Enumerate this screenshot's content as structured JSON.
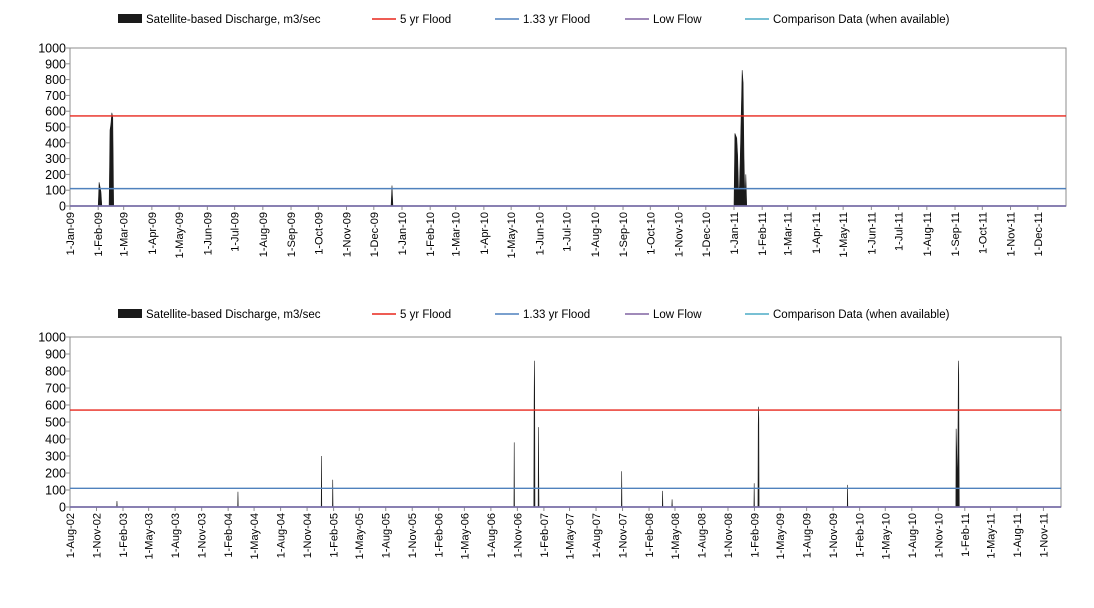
{
  "chart_data": [
    {
      "type": "area",
      "legend": [
        {
          "name": "Satellite-based Discharge, m3/sec",
          "color": "#1a1a1a",
          "style": "area"
        },
        {
          "name": "5 yr Flood",
          "color": "#e8261c",
          "style": "line"
        },
        {
          "name": "1.33 yr Flood",
          "color": "#4f81bd",
          "style": "line"
        },
        {
          "name": "Low Flow",
          "color": "#8064a2",
          "style": "line"
        },
        {
          "name": "Comparison Data (when available)",
          "color": "#4bacc6",
          "style": "line"
        }
      ],
      "ylim": [
        0,
        1000
      ],
      "yticks": [
        0,
        100,
        200,
        300,
        400,
        500,
        600,
        700,
        800,
        900,
        1000
      ],
      "xlim": [
        "2009-01-01",
        "2012-01-01"
      ],
      "xticks": [
        "1-Jan-09",
        "1-Feb-09",
        "1-Mar-09",
        "1-Apr-09",
        "1-May-09",
        "1-Jun-09",
        "1-Jul-09",
        "1-Aug-09",
        "1-Sep-09",
        "1-Oct-09",
        "1-Nov-09",
        "1-Dec-09",
        "1-Jan-10",
        "1-Feb-10",
        "1-Mar-10",
        "1-Apr-10",
        "1-May-10",
        "1-Jun-10",
        "1-Jul-10",
        "1-Aug-10",
        "1-Sep-10",
        "1-Oct-10",
        "1-Nov-10",
        "1-Dec-10",
        "1-Jan-11",
        "1-Feb-11",
        "1-Mar-11",
        "1-Apr-11",
        "1-May-11",
        "1-Jun-11",
        "1-Jul-11",
        "1-Aug-11",
        "1-Sep-11",
        "1-Oct-11",
        "1-Nov-11",
        "1-Dec-11"
      ],
      "reference_lines": {
        "5 yr Flood": 570,
        "1.33 yr Flood": 110,
        "Low Flow": 0,
        "Comparison Data (when available)": 0
      },
      "series": [
        {
          "name": "Satellite-based Discharge, m3/sec",
          "points": [
            [
              "2009-02-01",
              0
            ],
            [
              "2009-02-02",
              150
            ],
            [
              "2009-02-04",
              90
            ],
            [
              "2009-02-05",
              0
            ],
            [
              "2009-02-13",
              0
            ],
            [
              "2009-02-14",
              480
            ],
            [
              "2009-02-15",
              520
            ],
            [
              "2009-02-16",
              590
            ],
            [
              "2009-02-17",
              560
            ],
            [
              "2009-02-18",
              0
            ],
            [
              "2009-12-20",
              0
            ],
            [
              "2009-12-21",
              130
            ],
            [
              "2009-12-22",
              0
            ],
            [
              "2011-01-01",
              0
            ],
            [
              "2011-01-02",
              460
            ],
            [
              "2011-01-04",
              430
            ],
            [
              "2011-01-05",
              320
            ],
            [
              "2011-01-06",
              100
            ],
            [
              "2011-01-07",
              120
            ],
            [
              "2011-01-08",
              340
            ],
            [
              "2011-01-09",
              600
            ],
            [
              "2011-01-10",
              860
            ],
            [
              "2011-01-11",
              780
            ],
            [
              "2011-01-12",
              300
            ],
            [
              "2011-01-13",
              20
            ],
            [
              "2011-01-14",
              200
            ],
            [
              "2011-01-15",
              0
            ]
          ]
        }
      ]
    },
    {
      "type": "area",
      "legend": [
        {
          "name": "Satellite-based Discharge, m3/sec",
          "color": "#1a1a1a",
          "style": "area"
        },
        {
          "name": "5 yr Flood",
          "color": "#e8261c",
          "style": "line"
        },
        {
          "name": "1.33 yr Flood",
          "color": "#4f81bd",
          "style": "line"
        },
        {
          "name": "Low Flow",
          "color": "#8064a2",
          "style": "line"
        },
        {
          "name": "Comparison Data (when available)",
          "color": "#4bacc6",
          "style": "line"
        }
      ],
      "ylim": [
        0,
        1000
      ],
      "yticks": [
        0,
        100,
        200,
        300,
        400,
        500,
        600,
        700,
        800,
        900,
        1000
      ],
      "xlim": [
        "2002-08-01",
        "2012-01-01"
      ],
      "xticks": [
        "1-Aug-02",
        "1-Nov-02",
        "1-Feb-03",
        "1-May-03",
        "1-Aug-03",
        "1-Nov-03",
        "1-Feb-04",
        "1-May-04",
        "1-Aug-04",
        "1-Nov-04",
        "1-Feb-05",
        "1-May-05",
        "1-Aug-05",
        "1-Nov-05",
        "1-Feb-06",
        "1-May-06",
        "1-Aug-06",
        "1-Nov-06",
        "1-Feb-07",
        "1-May-07",
        "1-Aug-07",
        "1-Nov-07",
        "1-Feb-08",
        "1-May-08",
        "1-Aug-08",
        "1-Nov-08",
        "1-Feb-09",
        "1-May-09",
        "1-Aug-09",
        "1-Nov-09",
        "1-Feb-10",
        "1-May-10",
        "1-Aug-10",
        "1-Nov-10",
        "1-Feb-11",
        "1-May-11",
        "1-Aug-11",
        "1-Nov-11"
      ],
      "reference_lines": {
        "5 yr Flood": 570,
        "1.33 yr Flood": 110,
        "Low Flow": 0,
        "Comparison Data (when available)": 0
      },
      "series": [
        {
          "name": "Satellite-based Discharge, m3/sec",
          "points": [
            [
              "2003-01-10",
              0
            ],
            [
              "2003-01-11",
              35
            ],
            [
              "2003-01-12",
              0
            ],
            [
              "2004-03-05",
              0
            ],
            [
              "2004-03-06",
              90
            ],
            [
              "2004-03-07",
              0
            ],
            [
              "2004-12-20",
              0
            ],
            [
              "2004-12-21",
              300
            ],
            [
              "2004-12-22",
              0
            ],
            [
              "2005-01-28",
              0
            ],
            [
              "2005-01-29",
              160
            ],
            [
              "2005-01-30",
              0
            ],
            [
              "2006-10-20",
              0
            ],
            [
              "2006-10-21",
              380
            ],
            [
              "2006-10-22",
              0
            ],
            [
              "2006-12-28",
              0
            ],
            [
              "2006-12-29",
              600
            ],
            [
              "2006-12-30",
              860
            ],
            [
              "2006-12-31",
              700
            ],
            [
              "2007-01-01",
              0
            ],
            [
              "2007-01-12",
              0
            ],
            [
              "2007-01-13",
              470
            ],
            [
              "2007-01-14",
              200
            ],
            [
              "2007-01-15",
              0
            ],
            [
              "2007-10-28",
              0
            ],
            [
              "2007-10-29",
              210
            ],
            [
              "2007-10-30",
              0
            ],
            [
              "2008-03-18",
              0
            ],
            [
              "2008-03-19",
              95
            ],
            [
              "2008-03-20",
              0
            ],
            [
              "2008-04-20",
              0
            ],
            [
              "2008-04-21",
              45
            ],
            [
              "2008-04-22",
              0
            ],
            [
              "2009-01-30",
              0
            ],
            [
              "2009-01-31",
              140
            ],
            [
              "2009-02-01",
              0
            ],
            [
              "2009-02-13",
              0
            ],
            [
              "2009-02-14",
              480
            ],
            [
              "2009-02-15",
              590
            ],
            [
              "2009-02-16",
              520
            ],
            [
              "2009-02-17",
              0
            ],
            [
              "2009-12-20",
              0
            ],
            [
              "2009-12-21",
              130
            ],
            [
              "2009-12-22",
              0
            ],
            [
              "2011-01-01",
              0
            ],
            [
              "2011-01-02",
              460
            ],
            [
              "2011-01-04",
              320
            ],
            [
              "2011-01-06",
              120
            ],
            [
              "2011-01-08",
              340
            ],
            [
              "2011-01-10",
              860
            ],
            [
              "2011-01-11",
              780
            ],
            [
              "2011-01-12",
              300
            ],
            [
              "2011-01-13",
              0
            ]
          ]
        }
      ]
    }
  ]
}
